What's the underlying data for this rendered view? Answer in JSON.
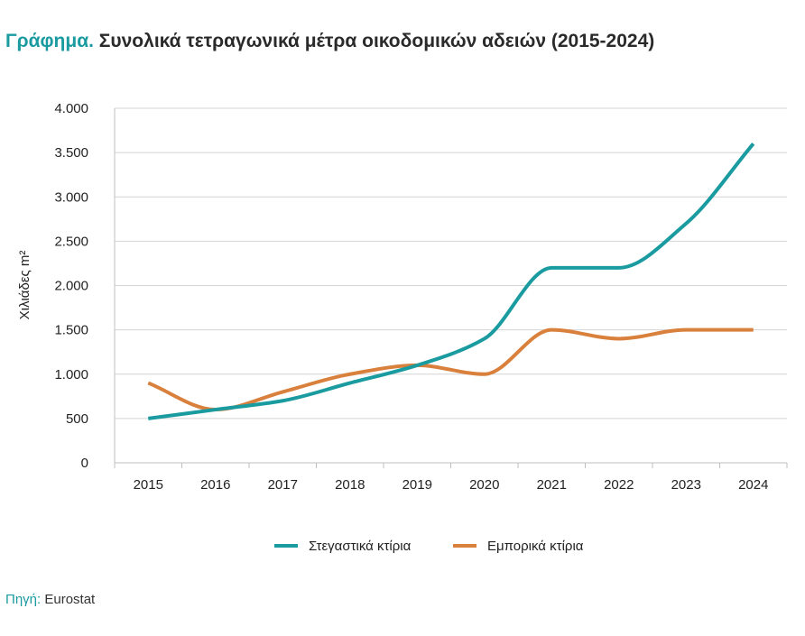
{
  "title": {
    "lead": "Γράφημα.",
    "text": " Συνολικά τετραγωνικά μέτρα οικοδομικών αδειών (2015-2024)"
  },
  "chart_data": {
    "type": "line",
    "title": "Συνολικά τετραγωνικά μέτρα οικοδομικών αδειών (2015-2024)",
    "xlabel": "",
    "ylabel": "Χιλιάδες m²",
    "ylim": [
      0,
      4000
    ],
    "yticks": [
      0,
      500,
      1000,
      1500,
      2000,
      2500,
      3000,
      3500,
      4000
    ],
    "ytick_labels": [
      "0",
      "500",
      "1.000",
      "1.500",
      "2.000",
      "2.500",
      "3.000",
      "3.500",
      "4.000"
    ],
    "categories": [
      "2015",
      "2016",
      "2017",
      "2018",
      "2019",
      "2020",
      "2021",
      "2022",
      "2023",
      "2024"
    ],
    "grid": true,
    "legend_position": "bottom",
    "series": [
      {
        "name": "Στεγαστικά κτίρια",
        "color": "#1a9ba0",
        "values": [
          500,
          600,
          700,
          900,
          1100,
          1400,
          2200,
          2200,
          2700,
          3600
        ]
      },
      {
        "name": "Εμπορικά κτίρια",
        "color": "#d9803d",
        "values": [
          900,
          600,
          800,
          1000,
          1100,
          1000,
          1500,
          1400,
          1500,
          1500
        ]
      }
    ]
  },
  "source": {
    "label": "Πηγή:",
    "text": " Eurostat"
  }
}
